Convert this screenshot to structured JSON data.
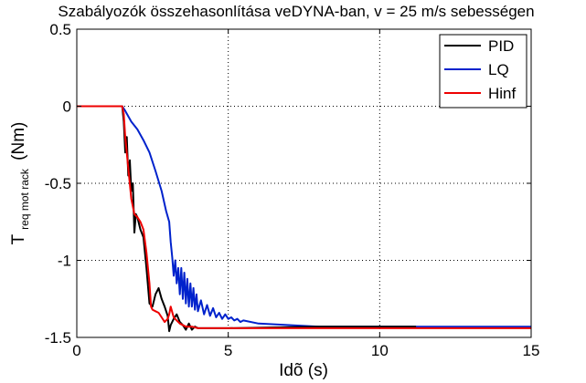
{
  "chart_data": {
    "type": "line",
    "title": "Szabályozók összehasonlítása veDYNA-ban, v = 25 m/s sebességen",
    "xlabel": "Idõ (s)",
    "ylabel": {
      "main": "T",
      "subscript": "req mot rack",
      "unit": "(Nm)"
    },
    "xlim": [
      0,
      15
    ],
    "ylim": [
      -1.5,
      0.5
    ],
    "xticks": [
      0,
      5,
      10,
      15
    ],
    "xtick_labels": [
      "0",
      "5",
      "10",
      "15"
    ],
    "yticks": [
      0.5,
      0,
      -0.5,
      -1,
      -1.5
    ],
    "ytick_labels": [
      "0.5",
      "0",
      "-0.5",
      "-1",
      "-1.5"
    ],
    "grid": true,
    "legend_position": "top-right",
    "series": [
      {
        "name": "PID",
        "color": "#000000",
        "x": [
          0,
          1.5,
          1.55,
          1.6,
          1.65,
          1.7,
          1.75,
          1.8,
          1.85,
          1.9,
          1.95,
          2.0,
          2.05,
          2.1,
          2.2,
          2.3,
          2.4,
          2.5,
          2.6,
          2.7,
          2.8,
          2.9,
          3.0,
          3.05,
          3.1,
          3.2,
          3.3,
          3.4,
          3.5,
          3.6,
          3.7,
          3.8,
          3.9,
          4.0,
          4.5,
          5.0,
          8.0,
          11.2
        ],
        "values": [
          0,
          0,
          -0.1,
          -0.3,
          -0.2,
          -0.45,
          -0.35,
          -0.55,
          -0.5,
          -0.82,
          -0.7,
          -0.72,
          -0.76,
          -0.8,
          -0.85,
          -1.05,
          -1.28,
          -1.3,
          -1.22,
          -1.18,
          -1.25,
          -1.3,
          -1.36,
          -1.46,
          -1.42,
          -1.38,
          -1.35,
          -1.4,
          -1.42,
          -1.45,
          -1.41,
          -1.45,
          -1.43,
          -1.44,
          -1.44,
          -1.44,
          -1.43,
          -1.43
        ]
      },
      {
        "name": "LQ",
        "color": "#0022cc",
        "x": [
          0,
          1.5,
          1.6,
          1.8,
          2.0,
          2.2,
          2.4,
          2.6,
          2.8,
          2.95,
          3.05,
          3.1,
          3.15,
          3.2,
          3.25,
          3.3,
          3.35,
          3.4,
          3.45,
          3.5,
          3.55,
          3.6,
          3.65,
          3.7,
          3.75,
          3.8,
          3.85,
          3.9,
          3.95,
          4.0,
          4.1,
          4.2,
          4.3,
          4.4,
          4.5,
          4.6,
          4.7,
          4.8,
          4.9,
          5.0,
          5.1,
          5.2,
          5.3,
          5.4,
          5.5,
          6.0,
          7.0,
          8.0,
          9.0,
          10.0,
          15.0
        ],
        "values": [
          0,
          0,
          -0.03,
          -0.1,
          -0.15,
          -0.22,
          -0.3,
          -0.42,
          -0.55,
          -0.68,
          -0.75,
          -0.88,
          -0.98,
          -1.1,
          -1.0,
          -1.15,
          -1.05,
          -1.22,
          -1.05,
          -1.25,
          -1.08,
          -1.28,
          -1.12,
          -1.3,
          -1.15,
          -1.3,
          -1.18,
          -1.32,
          -1.22,
          -1.33,
          -1.26,
          -1.35,
          -1.29,
          -1.36,
          -1.31,
          -1.37,
          -1.34,
          -1.38,
          -1.35,
          -1.38,
          -1.37,
          -1.39,
          -1.38,
          -1.4,
          -1.39,
          -1.41,
          -1.42,
          -1.43,
          -1.43,
          -1.43,
          -1.43
        ]
      },
      {
        "name": "Hinf",
        "color": "#ee0000",
        "x": [
          0,
          1.5,
          1.55,
          1.6,
          1.7,
          1.8,
          1.9,
          2.0,
          2.1,
          2.2,
          2.3,
          2.4,
          2.45,
          2.5,
          2.6,
          2.7,
          2.8,
          2.9,
          3.0,
          3.05,
          3.1,
          3.2,
          3.3,
          3.4,
          3.6,
          3.8,
          4.0,
          4.5,
          5.0,
          15.0
        ],
        "values": [
          0,
          0,
          -0.05,
          -0.2,
          -0.4,
          -0.6,
          -0.7,
          -0.72,
          -0.75,
          -0.8,
          -0.95,
          -1.15,
          -1.3,
          -1.32,
          -1.33,
          -1.34,
          -1.37,
          -1.4,
          -1.38,
          -1.35,
          -1.3,
          -1.37,
          -1.39,
          -1.41,
          -1.43,
          -1.43,
          -1.44,
          -1.44,
          -1.44,
          -1.44
        ]
      }
    ]
  }
}
